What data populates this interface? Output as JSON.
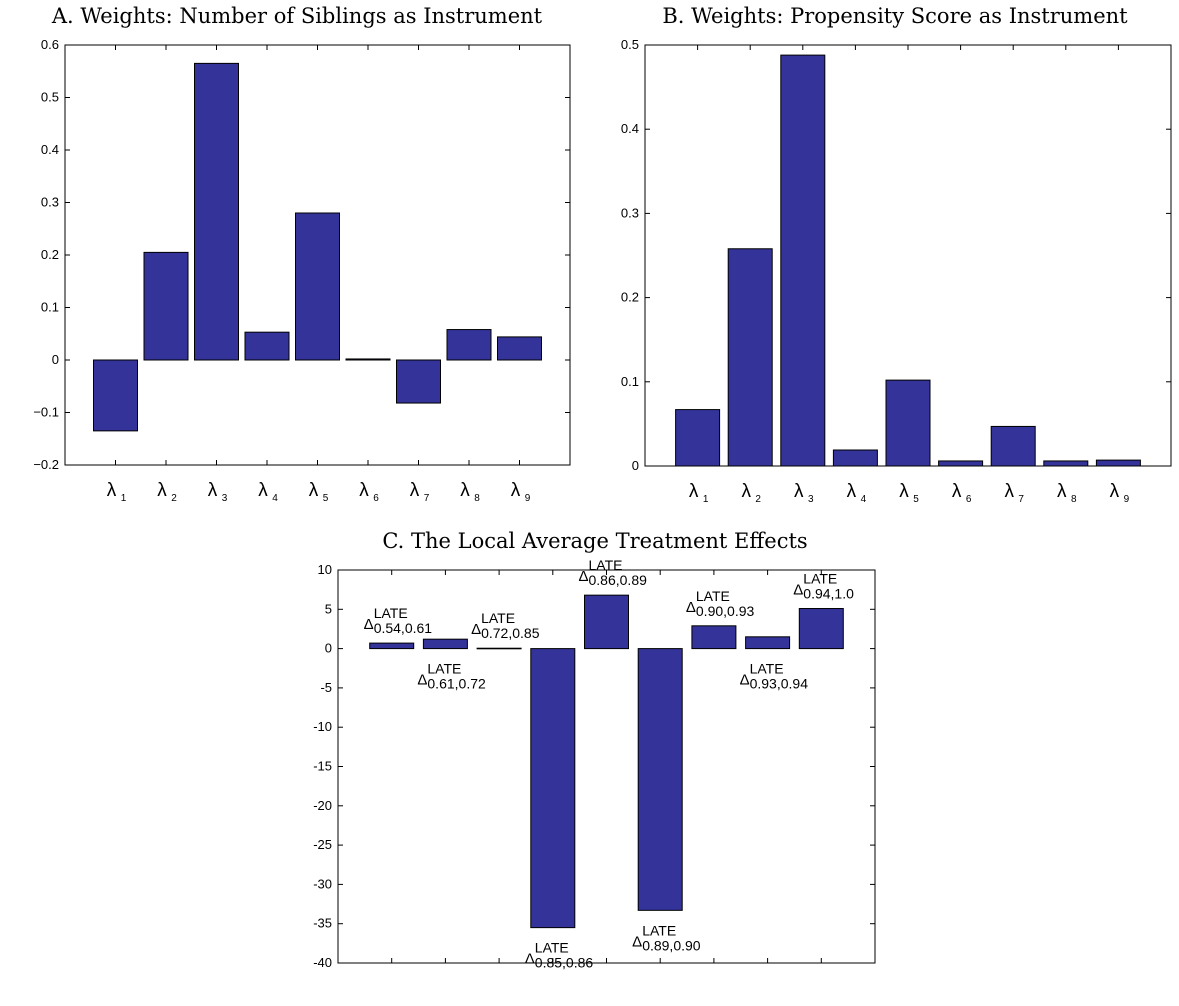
{
  "chart_data": [
    {
      "type": "bar",
      "title": "A. Weights: Number of Siblings as Instrument",
      "categories": [
        {
          "symbol": "λ",
          "sub": "1"
        },
        {
          "symbol": "λ",
          "sub": "2"
        },
        {
          "symbol": "λ",
          "sub": "3"
        },
        {
          "symbol": "λ",
          "sub": "4"
        },
        {
          "symbol": "λ",
          "sub": "5"
        },
        {
          "symbol": "λ",
          "sub": "6"
        },
        {
          "symbol": "λ",
          "sub": "7"
        },
        {
          "symbol": "λ",
          "sub": "8"
        },
        {
          "symbol": "λ",
          "sub": "9"
        }
      ],
      "values": [
        -0.135,
        0.205,
        0.565,
        0.053,
        0.28,
        0.002,
        -0.082,
        0.058,
        0.044
      ],
      "ylim": [
        -0.2,
        0.6
      ],
      "yticks": [
        -0.2,
        -0.1,
        0,
        0.1,
        0.2,
        0.3,
        0.4,
        0.5,
        0.6
      ],
      "ytick_labels": [
        "−0.2",
        "−0.1",
        "0",
        "0.1",
        "0.2",
        "0.3",
        "0.4",
        "0.5",
        "0.6"
      ],
      "bar_color": "#333399"
    },
    {
      "type": "bar",
      "title": "B. Weights: Propensity Score as Instrument",
      "categories": [
        {
          "symbol": "λ",
          "sub": "1"
        },
        {
          "symbol": "λ",
          "sub": "2"
        },
        {
          "symbol": "λ",
          "sub": "3"
        },
        {
          "symbol": "λ",
          "sub": "4"
        },
        {
          "symbol": "λ",
          "sub": "5"
        },
        {
          "symbol": "λ",
          "sub": "6"
        },
        {
          "symbol": "λ",
          "sub": "7"
        },
        {
          "symbol": "λ",
          "sub": "8"
        },
        {
          "symbol": "λ",
          "sub": "9"
        }
      ],
      "values": [
        0.067,
        0.258,
        0.488,
        0.019,
        0.102,
        0.006,
        0.047,
        0.006,
        0.007
      ],
      "ylim": [
        0,
        0.5
      ],
      "yticks": [
        0,
        0.1,
        0.2,
        0.3,
        0.4,
        0.5
      ],
      "ytick_labels": [
        "0",
        "0.1",
        "0.2",
        "0.3",
        "0.4",
        "0.5"
      ],
      "bar_color": "#333399"
    },
    {
      "type": "bar",
      "title": "C. The Local Average Treatment Effects",
      "categories": [
        {
          "symbol": "Δ",
          "sup": "LATE",
          "sub": "0.54,0.61"
        },
        {
          "symbol": "Δ",
          "sup": "LATE",
          "sub": "0.61,0.72"
        },
        {
          "symbol": "Δ",
          "sup": "LATE",
          "sub": "0.72,0.85"
        },
        {
          "symbol": "Δ",
          "sup": "LATE",
          "sub": "0.85,0.86"
        },
        {
          "symbol": "Δ",
          "sup": "LATE",
          "sub": "0.86,0.89"
        },
        {
          "symbol": "Δ",
          "sup": "LATE",
          "sub": "0.89,0.90"
        },
        {
          "symbol": "Δ",
          "sup": "LATE",
          "sub": "0.90,0.93"
        },
        {
          "symbol": "Δ",
          "sup": "LATE",
          "sub": "0.93,0.94"
        },
        {
          "symbol": "Δ",
          "sup": "LATE",
          "sub": "0.94,1.0"
        }
      ],
      "values": [
        0.7,
        1.2,
        0.05,
        -35.5,
        6.8,
        -33.3,
        2.9,
        1.5,
        5.1
      ],
      "ylim": [
        -40,
        10
      ],
      "yticks": [
        -40,
        -35,
        -30,
        -25,
        -20,
        -15,
        -10,
        -5,
        0,
        5,
        10
      ],
      "ytick_labels": [
        "-40",
        "-35",
        "-30",
        "-25",
        "-20",
        "-15",
        "-10",
        "-5",
        "0",
        "5",
        "10"
      ],
      "bar_color": "#333399"
    }
  ]
}
